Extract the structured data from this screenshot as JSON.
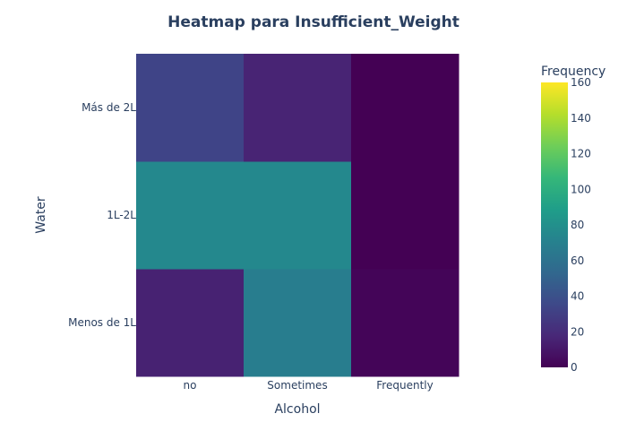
{
  "chart_data": {
    "type": "heatmap",
    "title": "Heatmap para Insufficient_Weight",
    "xlabel": "Alcohol",
    "ylabel": "Water",
    "x_categories": [
      "no",
      "Sometimes",
      "Frequently"
    ],
    "y_categories": [
      "Menos de 1L",
      "1L-2L",
      "Más de 2L"
    ],
    "z": [
      [
        15,
        68,
        2
      ],
      [
        75,
        75,
        0
      ],
      [
        33,
        16,
        0
      ]
    ],
    "colorbar": {
      "title": "Frequency",
      "range": [
        0,
        160
      ],
      "ticks": [
        "0",
        "20",
        "40",
        "60",
        "80",
        "100",
        "120",
        "140",
        "160"
      ],
      "colorscale": "Viridis"
    },
    "grid": false
  }
}
